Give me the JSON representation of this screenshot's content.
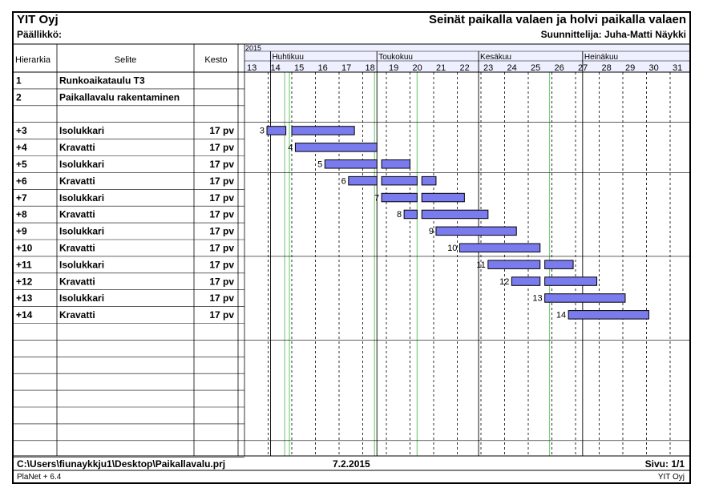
{
  "header": {
    "company": "YIT Oyj",
    "manager_label": "Päällikkö:",
    "title": "Seinät paikalla valaen ja holvi paikalla valaen",
    "designer": "Suunnittelija: Juha-Matti Näykki"
  },
  "columns": {
    "hierarchy": "Hierarkia",
    "description": "Selite",
    "duration": "Kesto"
  },
  "timeline": {
    "year": "2015",
    "months": [
      {
        "label": "Huhtikuu",
        "start_week": 14.1
      },
      {
        "label": "Toukokuu",
        "start_week": 18.6
      },
      {
        "label": "Kesäkuu",
        "start_week": 22.9
      },
      {
        "label": "Heinäkuu",
        "start_week": 27.3
      }
    ],
    "weeks": [
      "13",
      "14",
      "15",
      "16",
      "17",
      "18",
      "19",
      "20",
      "21",
      "22",
      "23",
      "24",
      "25",
      "26",
      "27",
      "28",
      "29",
      "30",
      "31"
    ],
    "holiday_weeks": [
      14.7,
      14.9,
      18.5,
      20.3,
      25.9
    ]
  },
  "rows": [
    {
      "hier": "1",
      "desc": "Runkoaikataulu T3",
      "dur": ""
    },
    {
      "hier": "2",
      "desc": "Paikallavalu rakentaminen",
      "dur": ""
    },
    {
      "hier": "",
      "desc": "",
      "dur": ""
    },
    {
      "hier": "+3",
      "desc": "Isolukkari",
      "dur": "17 pv"
    },
    {
      "hier": "+4",
      "desc": "Kravatti",
      "dur": "17 pv"
    },
    {
      "hier": "+5",
      "desc": "Isolukkari",
      "dur": "17 pv"
    },
    {
      "hier": "+6",
      "desc": "Kravatti",
      "dur": "17 pv"
    },
    {
      "hier": "+7",
      "desc": "Isolukkari",
      "dur": "17 pv"
    },
    {
      "hier": "+8",
      "desc": "Kravatti",
      "dur": "17 pv"
    },
    {
      "hier": "+9",
      "desc": "Isolukkari",
      "dur": "17 pv"
    },
    {
      "hier": "+10",
      "desc": "Kravatti",
      "dur": "17 pv"
    },
    {
      "hier": "+11",
      "desc": "Isolukkari",
      "dur": "17 pv"
    },
    {
      "hier": "+12",
      "desc": "Kravatti",
      "dur": "17 pv"
    },
    {
      "hier": "+13",
      "desc": "Isolukkari",
      "dur": "17 pv"
    },
    {
      "hier": "+14",
      "desc": "Kravatti",
      "dur": "17 pv"
    },
    {
      "hier": "",
      "desc": "",
      "dur": ""
    },
    {
      "hier": "",
      "desc": "",
      "dur": ""
    },
    {
      "hier": "",
      "desc": "",
      "dur": ""
    },
    {
      "hier": "",
      "desc": "",
      "dur": ""
    },
    {
      "hier": "",
      "desc": "",
      "dur": ""
    },
    {
      "hier": "",
      "desc": "",
      "dur": ""
    },
    {
      "hier": "",
      "desc": "",
      "dur": ""
    },
    {
      "hier": "",
      "desc": "",
      "dur": ""
    }
  ],
  "chart_data": {
    "type": "bar",
    "x_unit": "week",
    "xlim": [
      13,
      32
    ],
    "tasks": [
      {
        "label": "3",
        "row": 3,
        "segments": [
          [
            13.95,
            14.75
          ],
          [
            15.0,
            17.65
          ]
        ]
      },
      {
        "label": "4",
        "row": 4,
        "segments": [
          [
            15.15,
            18.6
          ]
        ]
      },
      {
        "label": "5",
        "row": 5,
        "segments": [
          [
            16.4,
            18.6
          ],
          [
            18.8,
            20.0
          ]
        ]
      },
      {
        "label": "6",
        "row": 6,
        "segments": [
          [
            17.4,
            18.6
          ],
          [
            18.8,
            20.3
          ],
          [
            20.5,
            21.1
          ]
        ]
      },
      {
        "label": "7",
        "row": 7,
        "segments": [
          [
            18.8,
            20.3
          ],
          [
            20.5,
            22.3
          ]
        ]
      },
      {
        "label": "8",
        "row": 8,
        "segments": [
          [
            19.75,
            20.3
          ],
          [
            20.5,
            23.3
          ]
        ]
      },
      {
        "label": "9",
        "row": 9,
        "segments": [
          [
            21.1,
            24.5
          ]
        ]
      },
      {
        "label": "10",
        "row": 10,
        "segments": [
          [
            22.1,
            25.5
          ]
        ]
      },
      {
        "label": "11",
        "row": 11,
        "segments": [
          [
            23.3,
            25.5
          ],
          [
            25.7,
            26.9
          ]
        ]
      },
      {
        "label": "12",
        "row": 12,
        "segments": [
          [
            24.3,
            25.5
          ],
          [
            25.7,
            27.9
          ]
        ]
      },
      {
        "label": "13",
        "row": 13,
        "segments": [
          [
            25.7,
            29.1
          ]
        ]
      },
      {
        "label": "14",
        "row": 14,
        "segments": [
          [
            26.7,
            30.1
          ]
        ]
      }
    ]
  },
  "footer": {
    "path": "C:\\Users\\fiunaykkju1\\Desktop\\Paikallavalu.prj",
    "date": "7.2.2015",
    "page": "Sivu: 1/1",
    "program": "PlaNet + 6.4",
    "company": "YIT Oyj"
  },
  "colors": {
    "bar_fill": "#7b7bf0",
    "bar_stroke": "#000000",
    "holiday": "#7fcf7f",
    "header_bg": "#eef0ff"
  }
}
